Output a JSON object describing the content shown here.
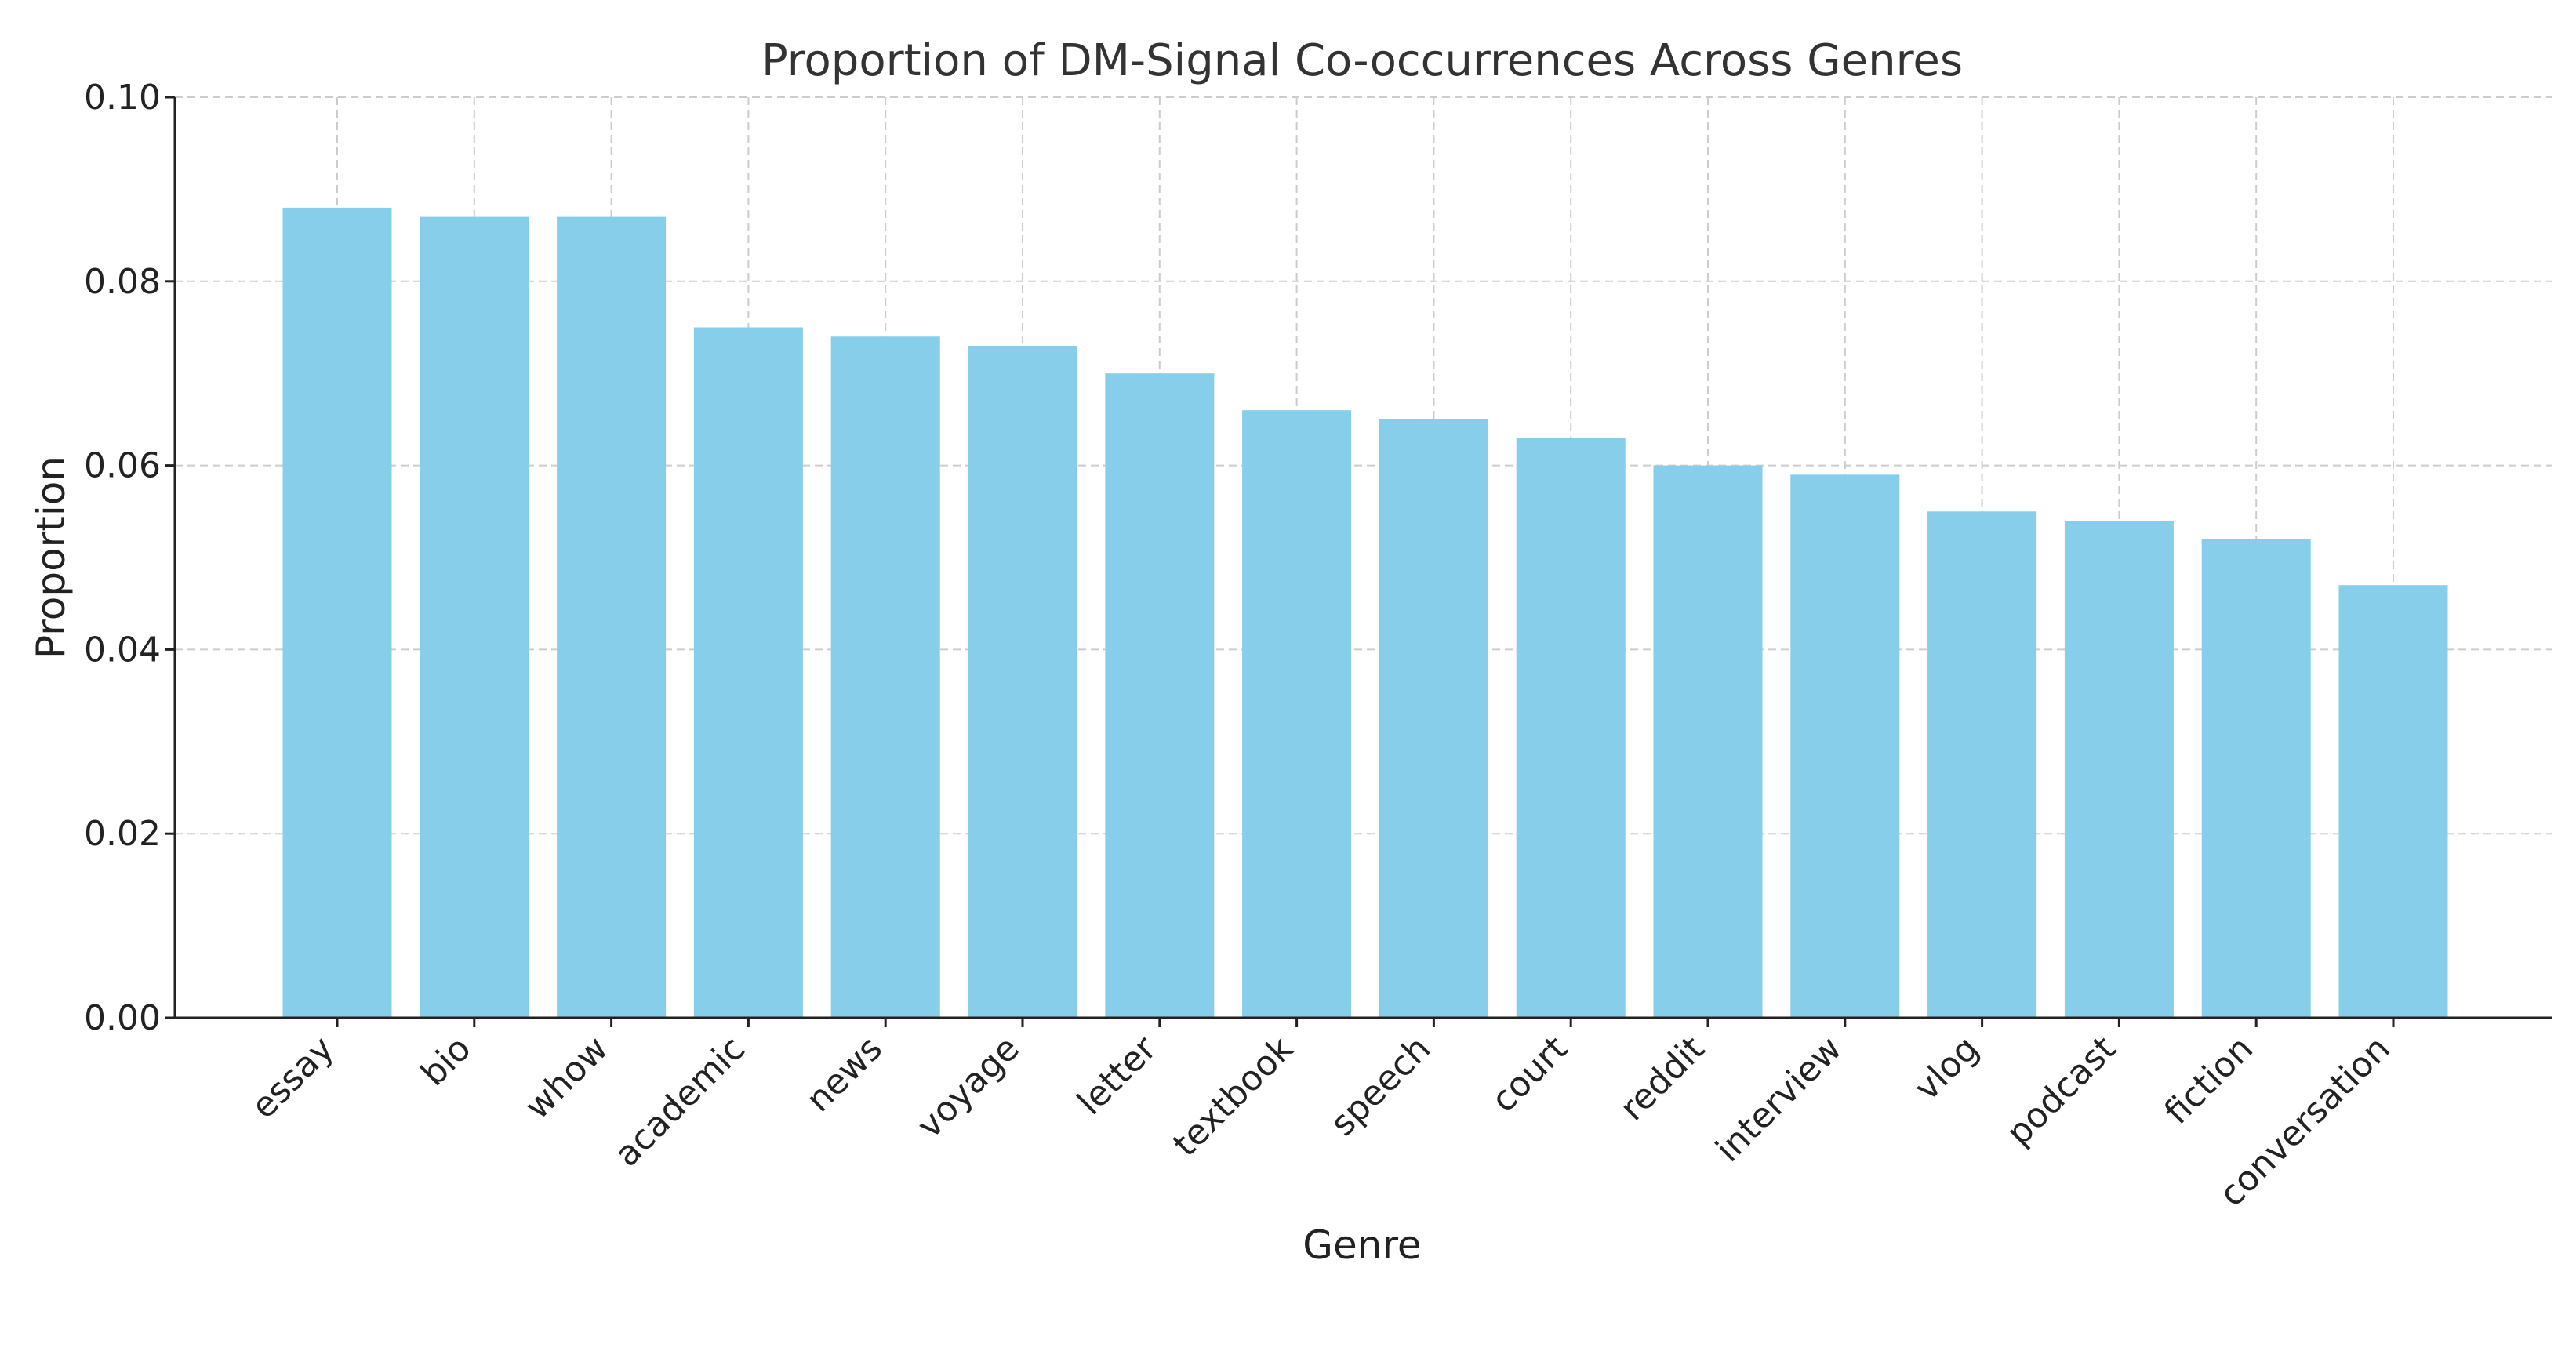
{
  "chart_data": {
    "type": "bar",
    "title": "Proportion of DM-Signal Co-occurrences Across Genres",
    "xlabel": "Genre",
    "ylabel": "Proportion",
    "categories": [
      "essay",
      "bio",
      "whow",
      "academic",
      "news",
      "voyage",
      "letter",
      "textbook",
      "speech",
      "court",
      "reddit",
      "interview",
      "vlog",
      "podcast",
      "fiction",
      "conversation"
    ],
    "values": [
      0.088,
      0.087,
      0.087,
      0.075,
      0.074,
      0.073,
      0.07,
      0.066,
      0.065,
      0.063,
      0.06,
      0.059,
      0.055,
      0.054,
      0.052,
      0.047
    ],
    "ylim": [
      0,
      0.1
    ],
    "yticks": [
      "0.00",
      "0.02",
      "0.04",
      "0.06",
      "0.08",
      "0.10"
    ],
    "bar_color": "#87ceeb",
    "grid": true
  }
}
